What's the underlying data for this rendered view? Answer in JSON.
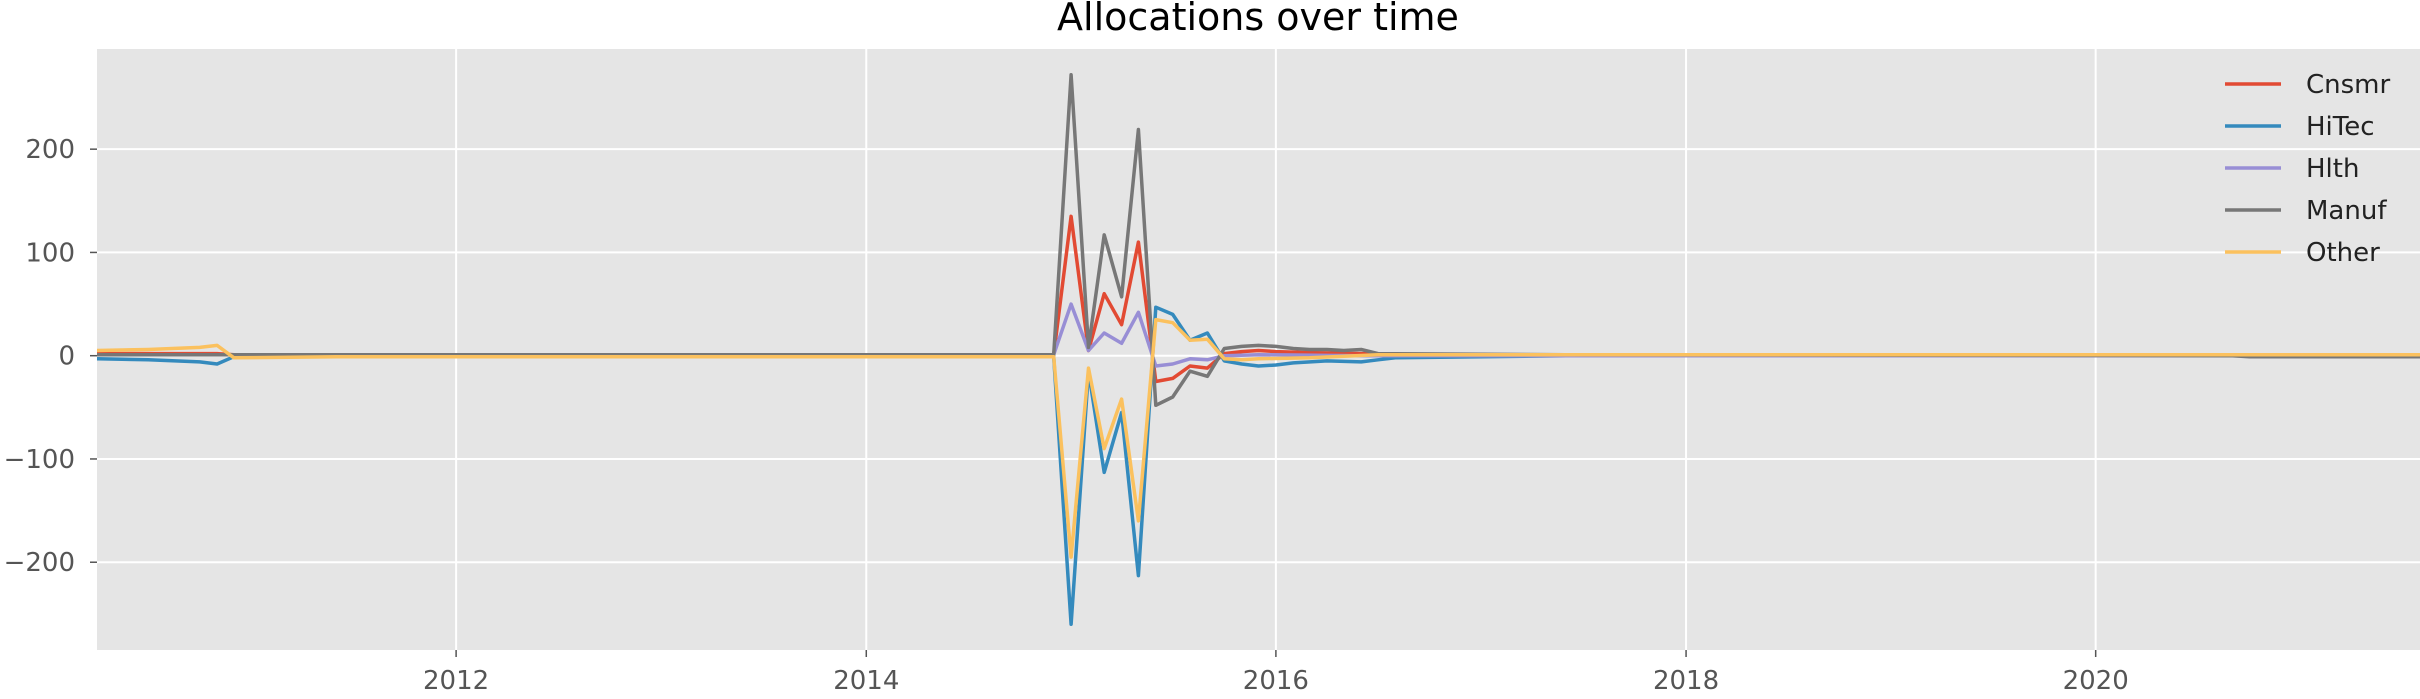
{
  "chart_data": {
    "type": "line",
    "title": "Allocations over time",
    "xlabel": "",
    "ylabel": "",
    "x_axis_type": "date",
    "xlim": [
      "2010-04-01",
      "2021-08-01"
    ],
    "ylim": [
      -285,
      297
    ],
    "x_ticks": [
      "2012-01-01",
      "2014-01-01",
      "2016-01-01",
      "2018-01-01",
      "2020-01-01"
    ],
    "x_tick_labels": [
      "2012",
      "2014",
      "2016",
      "2018",
      "2020"
    ],
    "y_ticks": [
      -200,
      -100,
      0,
      100,
      200
    ],
    "y_tick_labels": [
      "−200",
      "−100",
      "0",
      "100",
      "200"
    ],
    "grid": true,
    "legend_position": "top-right",
    "background": "#e5e5e5",
    "series": [
      {
        "name": "Cnsmr",
        "color": "#E24A33",
        "points": [
          [
            "2010-04-01",
            2
          ],
          [
            "2010-11-01",
            2
          ],
          [
            "2010-12-01",
            1
          ],
          [
            "2014-12-01",
            1
          ],
          [
            "2015-01-01",
            135
          ],
          [
            "2015-02-01",
            5
          ],
          [
            "2015-03-01",
            60
          ],
          [
            "2015-04-01",
            30
          ],
          [
            "2015-05-01",
            110
          ],
          [
            "2015-06-01",
            -25
          ],
          [
            "2015-07-01",
            -22
          ],
          [
            "2015-08-01",
            -10
          ],
          [
            "2015-09-01",
            -12
          ],
          [
            "2015-10-01",
            2
          ],
          [
            "2015-11-01",
            4
          ],
          [
            "2015-12-01",
            5
          ],
          [
            "2016-01-01",
            4
          ],
          [
            "2016-03-01",
            3
          ],
          [
            "2016-06-01",
            2
          ],
          [
            "2016-08-01",
            1
          ],
          [
            "2017-06-01",
            0
          ],
          [
            "2021-08-01",
            0
          ]
        ]
      },
      {
        "name": "HiTec",
        "color": "#348ABD",
        "points": [
          [
            "2010-04-01",
            -3
          ],
          [
            "2010-07-01",
            -4
          ],
          [
            "2010-10-01",
            -6
          ],
          [
            "2010-11-01",
            -8
          ],
          [
            "2010-12-01",
            -1
          ],
          [
            "2014-12-01",
            -1
          ],
          [
            "2015-01-01",
            -260
          ],
          [
            "2015-02-01",
            -15
          ],
          [
            "2015-03-01",
            -113
          ],
          [
            "2015-04-01",
            -55
          ],
          [
            "2015-05-01",
            -213
          ],
          [
            "2015-06-01",
            47
          ],
          [
            "2015-07-01",
            40
          ],
          [
            "2015-08-01",
            15
          ],
          [
            "2015-09-01",
            22
          ],
          [
            "2015-10-01",
            -5
          ],
          [
            "2015-11-01",
            -8
          ],
          [
            "2015-12-01",
            -10
          ],
          [
            "2016-01-01",
            -9
          ],
          [
            "2016-02-01",
            -7
          ],
          [
            "2016-04-01",
            -5
          ],
          [
            "2016-06-01",
            -6
          ],
          [
            "2016-07-01",
            -4
          ],
          [
            "2016-08-01",
            -2
          ],
          [
            "2017-06-01",
            0
          ],
          [
            "2021-08-01",
            0
          ]
        ]
      },
      {
        "name": "Hlth",
        "color": "#988ED5",
        "points": [
          [
            "2010-04-01",
            1
          ],
          [
            "2014-12-01",
            1
          ],
          [
            "2015-01-01",
            50
          ],
          [
            "2015-02-01",
            5
          ],
          [
            "2015-03-01",
            22
          ],
          [
            "2015-04-01",
            12
          ],
          [
            "2015-05-01",
            42
          ],
          [
            "2015-06-01",
            -10
          ],
          [
            "2015-07-01",
            -8
          ],
          [
            "2015-08-01",
            -3
          ],
          [
            "2015-09-01",
            -4
          ],
          [
            "2015-10-01",
            0
          ],
          [
            "2015-12-01",
            1
          ],
          [
            "2016-06-01",
            0
          ],
          [
            "2021-08-01",
            0
          ]
        ]
      },
      {
        "name": "Manuf",
        "color": "#777777",
        "points": [
          [
            "2010-04-01",
            1
          ],
          [
            "2014-12-01",
            1
          ],
          [
            "2015-01-01",
            272
          ],
          [
            "2015-02-01",
            8
          ],
          [
            "2015-03-01",
            117
          ],
          [
            "2015-04-01",
            57
          ],
          [
            "2015-05-01",
            219
          ],
          [
            "2015-06-01",
            -48
          ],
          [
            "2015-07-01",
            -40
          ],
          [
            "2015-08-01",
            -15
          ],
          [
            "2015-09-01",
            -20
          ],
          [
            "2015-10-01",
            7
          ],
          [
            "2015-11-01",
            9
          ],
          [
            "2015-12-01",
            10
          ],
          [
            "2016-01-01",
            9
          ],
          [
            "2016-02-01",
            7
          ],
          [
            "2016-03-01",
            6
          ],
          [
            "2016-04-01",
            6
          ],
          [
            "2016-05-01",
            5
          ],
          [
            "2016-06-01",
            6
          ],
          [
            "2016-07-01",
            2
          ],
          [
            "2017-06-01",
            1
          ],
          [
            "2020-09-01",
            0
          ],
          [
            "2020-10-01",
            -1
          ],
          [
            "2021-08-01",
            -1
          ]
        ]
      },
      {
        "name": "Other",
        "color": "#FBC15E",
        "points": [
          [
            "2010-04-01",
            5
          ],
          [
            "2010-07-01",
            6
          ],
          [
            "2010-10-01",
            8
          ],
          [
            "2010-11-01",
            10
          ],
          [
            "2010-12-01",
            -2
          ],
          [
            "2011-06-01",
            -1
          ],
          [
            "2014-12-01",
            -1
          ],
          [
            "2015-01-01",
            -195
          ],
          [
            "2015-02-01",
            -12
          ],
          [
            "2015-03-01",
            -90
          ],
          [
            "2015-04-01",
            -42
          ],
          [
            "2015-05-01",
            -160
          ],
          [
            "2015-06-01",
            35
          ],
          [
            "2015-07-01",
            32
          ],
          [
            "2015-08-01",
            15
          ],
          [
            "2015-09-01",
            16
          ],
          [
            "2015-10-01",
            -3
          ],
          [
            "2015-11-01",
            -4
          ],
          [
            "2015-12-01",
            -3
          ],
          [
            "2016-03-01",
            -2
          ],
          [
            "2016-07-01",
            1
          ],
          [
            "2020-09-01",
            1
          ],
          [
            "2021-08-01",
            1
          ]
        ]
      }
    ]
  }
}
